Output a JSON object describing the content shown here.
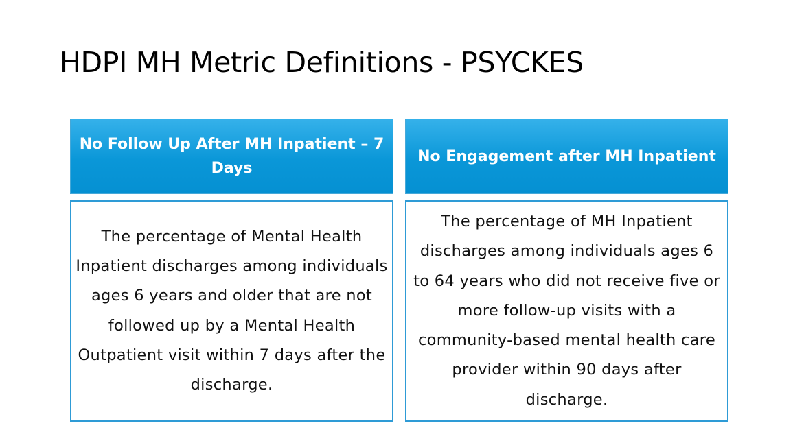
{
  "slide": {
    "title": "HDPI MH Metric Definitions - PSYCKES"
  },
  "cards": [
    {
      "header": "No Follow Up After MH Inpatient – 7 Days",
      "definition": "The percentage of Mental Health Inpatient discharges among individuals ages 6 years and older that are not followed up by a Mental Health Outpatient visit within 7 days after the discharge."
    },
    {
      "header": "No Engagement after MH Inpatient",
      "definition": "The percentage of MH Inpatient discharges among individuals ages 6 to 64 years who did not receive five or more follow-up visits with a community-based mental health care provider within 90 days after discharge."
    }
  ],
  "colors": {
    "header_fill": "#0a97d8",
    "header_fill_light": "#35b1ea",
    "body_border": "#2e9bd6"
  }
}
